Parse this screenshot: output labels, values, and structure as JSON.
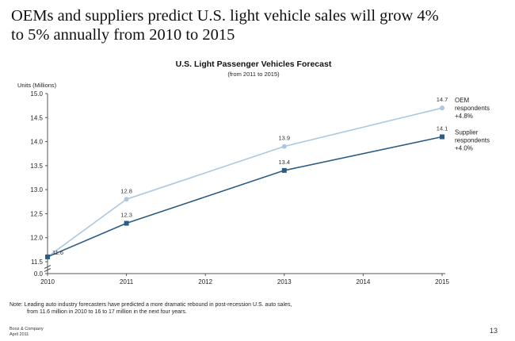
{
  "headline": {
    "line1": "OEMs and suppliers predict U.S. light vehicle sales will grow 4%",
    "line2": "to 5% annually from 2010 to 2015"
  },
  "chart_data": {
    "type": "line",
    "title": "U.S. Light Passenger Vehicles Forecast",
    "subtitle": "(from 2011 to 2015)",
    "ylabel": "Units (Millions)",
    "xlabel": "",
    "x": [
      2010,
      2011,
      2012,
      2013,
      2014,
      2015
    ],
    "ylim": [
      0.0,
      15.0
    ],
    "y_scale_break": true,
    "yticks": [
      "0.0",
      "11.5",
      "12.0",
      "12.5",
      "13.0",
      "13.5",
      "14.0",
      "14.5",
      "15.0"
    ],
    "xticks": [
      "2010",
      "2011",
      "2012",
      "2013",
      "2014",
      "2015"
    ],
    "grid": false,
    "series": [
      {
        "color": "#a9c8e2",
        "marker": "circle",
        "points": [
          {
            "x": 2010,
            "y": 11.6,
            "label": ""
          },
          {
            "x": 2011,
            "y": 12.8,
            "label": "12.8"
          },
          {
            "x": 2013,
            "y": 13.9,
            "label": "13.9"
          },
          {
            "x": 2015,
            "y": 14.7,
            "label": "14.7"
          }
        ],
        "end_label": [
          "OEM",
          "respondents",
          "+4.8%"
        ]
      },
      {
        "color": "#2b5c86",
        "marker": "square",
        "points": [
          {
            "x": 2010,
            "y": 11.6,
            "label": "11.6"
          },
          {
            "x": 2011,
            "y": 12.3,
            "label": "12.3"
          },
          {
            "x": 2013,
            "y": 13.4,
            "label": "13.4"
          },
          {
            "x": 2015,
            "y": 14.1,
            "label": "14.1"
          }
        ],
        "end_label": [
          "Supplier",
          "respondents",
          "+4.0%"
        ]
      }
    ]
  },
  "note": {
    "line1": "Note: Leading auto industry forecasters have predicted a more dramatic rebound in post-recession U.S. auto sales,",
    "line2": "from 11.6 million in 2010 to 16 to 17 million in the next four years."
  },
  "source": {
    "line1": "Booz & Company",
    "line2": "April 2011"
  },
  "page_number": "13"
}
